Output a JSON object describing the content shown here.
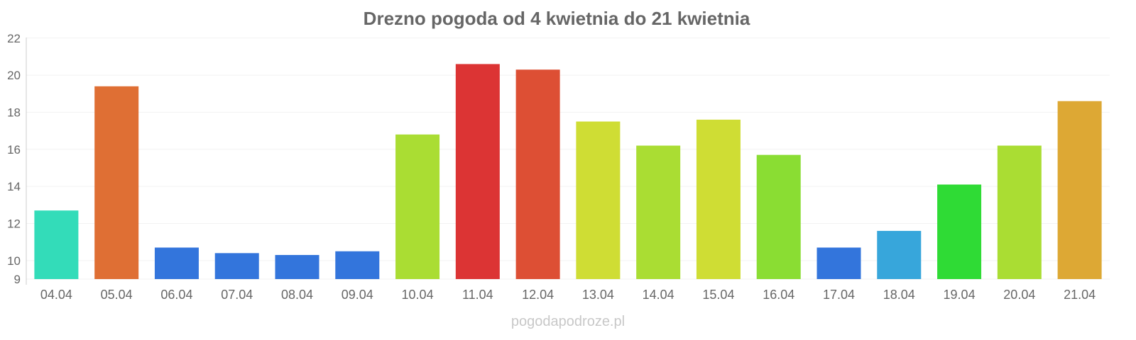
{
  "chart_data": {
    "type": "bar",
    "title": "Drezno pogoda od 4 kwietnia do 21 kwietnia",
    "xlabel": "",
    "ylabel": "",
    "ylim": [
      9,
      22
    ],
    "yticks": [
      9,
      10,
      12,
      14,
      16,
      18,
      20,
      22
    ],
    "grid": true,
    "categories": [
      "04.04",
      "05.04",
      "06.04",
      "07.04",
      "08.04",
      "09.04",
      "10.04",
      "11.04",
      "12.04",
      "13.04",
      "14.04",
      "15.04",
      "16.04",
      "17.04",
      "18.04",
      "19.04",
      "20.04",
      "21.04"
    ],
    "values": [
      12.7,
      19.4,
      10.7,
      10.4,
      10.3,
      10.5,
      16.8,
      20.6,
      20.3,
      17.5,
      16.2,
      17.6,
      15.7,
      10.7,
      11.6,
      14.1,
      16.2,
      18.6
    ],
    "colors": [
      "#33dcb9",
      "#df6f34",
      "#3375dc",
      "#3375dc",
      "#3375dc",
      "#3375dc",
      "#aadd33",
      "#dc3434",
      "#dd4f34",
      "#cfdd34",
      "#aadd33",
      "#cfdd34",
      "#8add33",
      "#3375dc",
      "#37a6db",
      "#2fdb35",
      "#aadd33",
      "#dda834"
    ]
  },
  "watermark": "pogodapodroze.pl"
}
